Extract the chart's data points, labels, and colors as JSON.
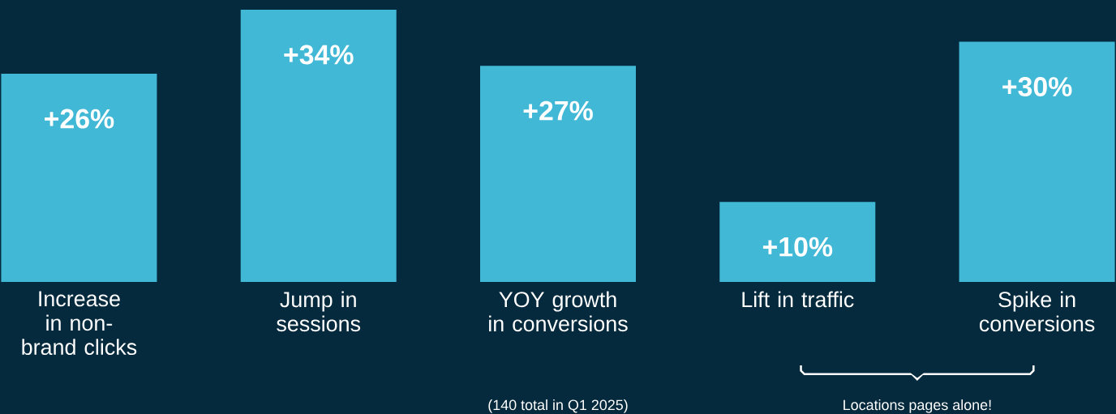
{
  "chart_data": {
    "type": "bar",
    "categories": [
      "Increase in non-brand clicks",
      "Jump in sessions",
      "YOY growth in conversions",
      "Lift in traffic",
      "Spike in conversions"
    ],
    "values": [
      26,
      34,
      27,
      10,
      30
    ],
    "value_labels": [
      "+26%",
      "+34%",
      "+27%",
      "+10%",
      "+30%"
    ],
    "color": "#42b8d7",
    "annotations": [
      "(140 total in Q1 2025)",
      "Locations pages alone!"
    ]
  }
}
